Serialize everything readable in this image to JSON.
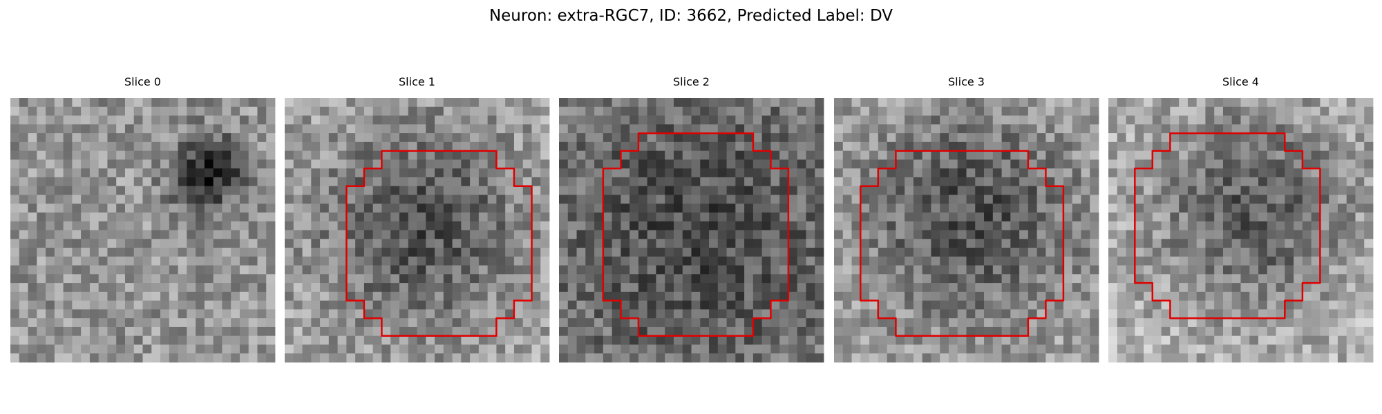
{
  "title": "Neuron: extra-RGC7, ID: 3662, Predicted Label: DV",
  "panels": [
    {
      "title": "Slice 0"
    },
    {
      "title": "Slice 1"
    },
    {
      "title": "Slice 2"
    },
    {
      "title": "Slice 3"
    },
    {
      "title": "Slice 4"
    }
  ]
}
